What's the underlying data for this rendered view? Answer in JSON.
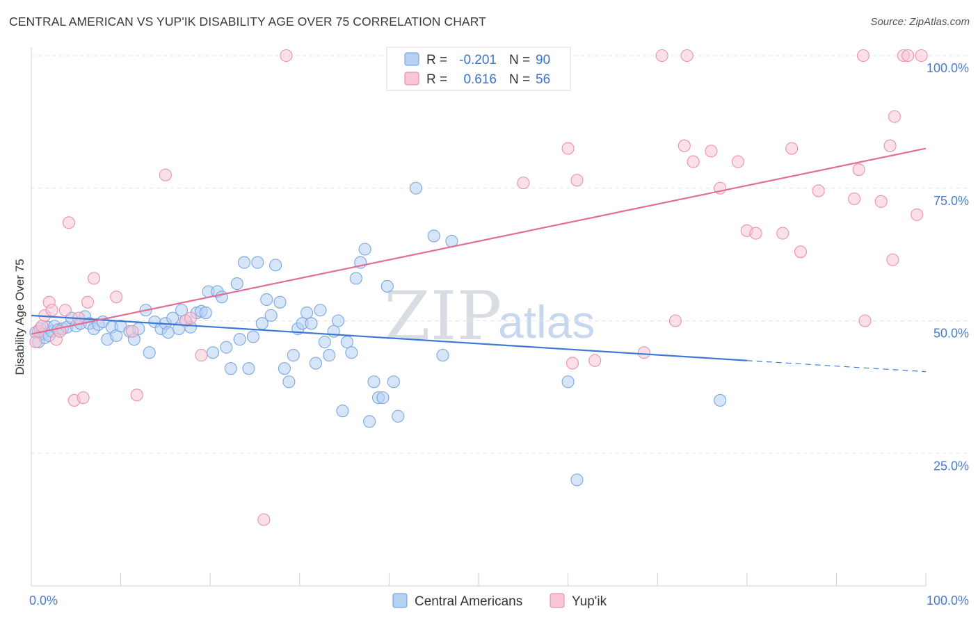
{
  "title": "CENTRAL AMERICAN VS YUP'IK DISABILITY AGE OVER 75 CORRELATION CHART",
  "source": "Source: ZipAtlas.com",
  "watermark": {
    "zip": "ZIP",
    "atlas": "atlas"
  },
  "stats": {
    "r_label": "R =",
    "n_label": "N =",
    "rows": [
      {
        "r": "-0.201",
        "n": "90",
        "color": "#7aa6e0",
        "fill": "#b6d0f2"
      },
      {
        "r": "0.616",
        "n": "56",
        "color": "#ec8fae",
        "fill": "#f8c6d6"
      }
    ]
  },
  "legend": [
    {
      "label": "Central Americans",
      "fill": "#b6d0f2",
      "stroke": "#7aa6e0"
    },
    {
      "label": "Yup'ik",
      "fill": "#f8c6d6",
      "stroke": "#ec8fae"
    }
  ],
  "chart_data": {
    "type": "scatter",
    "title": "CENTRAL AMERICAN VS YUP'IK DISABILITY AGE OVER 75 CORRELATION CHART",
    "xlabel": "",
    "ylabel": "Disability Age Over 75",
    "xlim": [
      0,
      100
    ],
    "ylim": [
      0,
      100
    ],
    "x_tick_labels": [
      "0.0%",
      "100.0%"
    ],
    "y_ticks": [
      25,
      50,
      75,
      100
    ],
    "y_tick_labels": [
      "25.0%",
      "50.0%",
      "75.0%",
      "100.0%"
    ],
    "grid": true,
    "legend_position": "bottom",
    "series": [
      {
        "name": "Central Americans",
        "color": "#3b78d6",
        "fill": "#b6d0f2",
        "r": -0.201,
        "n": 90,
        "trend": {
          "x0": 0,
          "y0": 51.0,
          "x1": 80,
          "y1": 42.5,
          "dash_to_x": 100,
          "dash_to_y": 40.4
        },
        "points": [
          [
            0.5,
            47.8
          ],
          [
            0.8,
            46.0
          ],
          [
            1.0,
            48.5
          ],
          [
            1.2,
            47.5
          ],
          [
            1.5,
            46.8
          ],
          [
            1.8,
            48.8
          ],
          [
            2.0,
            47.2
          ],
          [
            2.3,
            48.0
          ],
          [
            2.6,
            49.0
          ],
          [
            3.0,
            48.3
          ],
          [
            3.5,
            48.5
          ],
          [
            4.0,
            48.8
          ],
          [
            4.5,
            50.5
          ],
          [
            5.0,
            49.0
          ],
          [
            5.5,
            49.5
          ],
          [
            6.0,
            50.8
          ],
          [
            6.5,
            49.5
          ],
          [
            7.0,
            48.5
          ],
          [
            7.5,
            49.3
          ],
          [
            8.0,
            49.8
          ],
          [
            8.5,
            46.5
          ],
          [
            9.0,
            48.8
          ],
          [
            9.5,
            47.2
          ],
          [
            10.0,
            49.0
          ],
          [
            11.0,
            48.0
          ],
          [
            11.5,
            46.5
          ],
          [
            12.0,
            48.5
          ],
          [
            12.8,
            52.0
          ],
          [
            13.2,
            44.0
          ],
          [
            13.8,
            49.8
          ],
          [
            14.5,
            48.5
          ],
          [
            15.0,
            49.5
          ],
          [
            15.3,
            47.8
          ],
          [
            15.8,
            50.5
          ],
          [
            16.5,
            48.5
          ],
          [
            16.8,
            52.0
          ],
          [
            17.3,
            50.0
          ],
          [
            17.8,
            48.8
          ],
          [
            18.5,
            51.5
          ],
          [
            19.0,
            51.8
          ],
          [
            19.5,
            51.5
          ],
          [
            19.8,
            55.5
          ],
          [
            20.3,
            44.0
          ],
          [
            20.8,
            55.5
          ],
          [
            21.3,
            54.5
          ],
          [
            21.8,
            45.0
          ],
          [
            22.3,
            41.0
          ],
          [
            23.0,
            57.0
          ],
          [
            23.3,
            46.5
          ],
          [
            23.8,
            61.0
          ],
          [
            24.3,
            41.0
          ],
          [
            24.8,
            47.0
          ],
          [
            25.3,
            61.0
          ],
          [
            25.8,
            49.5
          ],
          [
            26.3,
            54.0
          ],
          [
            26.8,
            51.0
          ],
          [
            27.3,
            60.5
          ],
          [
            27.8,
            53.5
          ],
          [
            28.3,
            41.0
          ],
          [
            28.8,
            38.5
          ],
          [
            29.3,
            43.5
          ],
          [
            29.8,
            48.5
          ],
          [
            30.3,
            49.5
          ],
          [
            30.8,
            51.5
          ],
          [
            31.3,
            49.5
          ],
          [
            31.8,
            42.0
          ],
          [
            32.3,
            52.0
          ],
          [
            32.8,
            46.0
          ],
          [
            33.3,
            43.5
          ],
          [
            33.8,
            48.0
          ],
          [
            34.3,
            50.0
          ],
          [
            34.8,
            33.0
          ],
          [
            35.3,
            46.0
          ],
          [
            35.8,
            44.0
          ],
          [
            36.3,
            58.0
          ],
          [
            36.8,
            61.0
          ],
          [
            37.3,
            63.5
          ],
          [
            37.8,
            31.0
          ],
          [
            38.3,
            38.5
          ],
          [
            38.8,
            35.5
          ],
          [
            39.3,
            35.5
          ],
          [
            39.8,
            56.5
          ],
          [
            40.5,
            38.5
          ],
          [
            41.0,
            32.0
          ],
          [
            43.0,
            75.0
          ],
          [
            45.0,
            66.0
          ],
          [
            46.0,
            43.5
          ],
          [
            47.0,
            65.0
          ],
          [
            60.0,
            38.5
          ],
          [
            61.0,
            20.0
          ],
          [
            77.0,
            35.0
          ]
        ]
      },
      {
        "name": "Yup'ik",
        "color": "#e36c95",
        "fill": "#f8c6d6",
        "r": 0.616,
        "n": 56,
        "trend": {
          "x0": 0,
          "y0": 47.5,
          "x1": 100,
          "y1": 82.5
        },
        "points": [
          [
            0.5,
            46.0
          ],
          [
            0.8,
            48.0
          ],
          [
            1.2,
            49.0
          ],
          [
            1.5,
            51.0
          ],
          [
            2.0,
            53.5
          ],
          [
            2.3,
            52.0
          ],
          [
            2.8,
            46.5
          ],
          [
            3.2,
            48.0
          ],
          [
            3.8,
            52.0
          ],
          [
            4.2,
            68.5
          ],
          [
            4.8,
            35.0
          ],
          [
            5.3,
            50.5
          ],
          [
            5.8,
            35.5
          ],
          [
            6.3,
            53.5
          ],
          [
            7.0,
            58.0
          ],
          [
            9.5,
            54.5
          ],
          [
            11.3,
            48.0
          ],
          [
            11.8,
            36.0
          ],
          [
            15.0,
            77.5
          ],
          [
            17.2,
            50.0
          ],
          [
            17.8,
            50.5
          ],
          [
            19.0,
            43.5
          ],
          [
            26.0,
            12.5
          ],
          [
            28.5,
            100.0
          ],
          [
            55.0,
            76.0
          ],
          [
            60.0,
            82.5
          ],
          [
            60.5,
            42.0
          ],
          [
            61.0,
            76.5
          ],
          [
            63.0,
            42.5
          ],
          [
            68.5,
            44.0
          ],
          [
            70.5,
            100.0
          ],
          [
            72.0,
            50.0
          ],
          [
            73.0,
            83.0
          ],
          [
            73.3,
            100.0
          ],
          [
            74.0,
            80.0
          ],
          [
            76.0,
            82.0
          ],
          [
            77.0,
            75.0
          ],
          [
            79.0,
            80.0
          ],
          [
            80.0,
            67.0
          ],
          [
            81.0,
            66.5
          ],
          [
            84.0,
            66.5
          ],
          [
            85.0,
            82.5
          ],
          [
            86.0,
            63.0
          ],
          [
            88.0,
            74.5
          ],
          [
            92.0,
            73.0
          ],
          [
            92.5,
            78.5
          ],
          [
            93.0,
            100.0
          ],
          [
            93.2,
            50.0
          ],
          [
            95.0,
            72.5
          ],
          [
            96.0,
            83.0
          ],
          [
            96.3,
            61.5
          ],
          [
            96.5,
            88.5
          ],
          [
            97.5,
            100.0
          ],
          [
            98.0,
            100.0
          ],
          [
            99.0,
            70.0
          ],
          [
            99.5,
            100.0
          ]
        ]
      }
    ]
  }
}
